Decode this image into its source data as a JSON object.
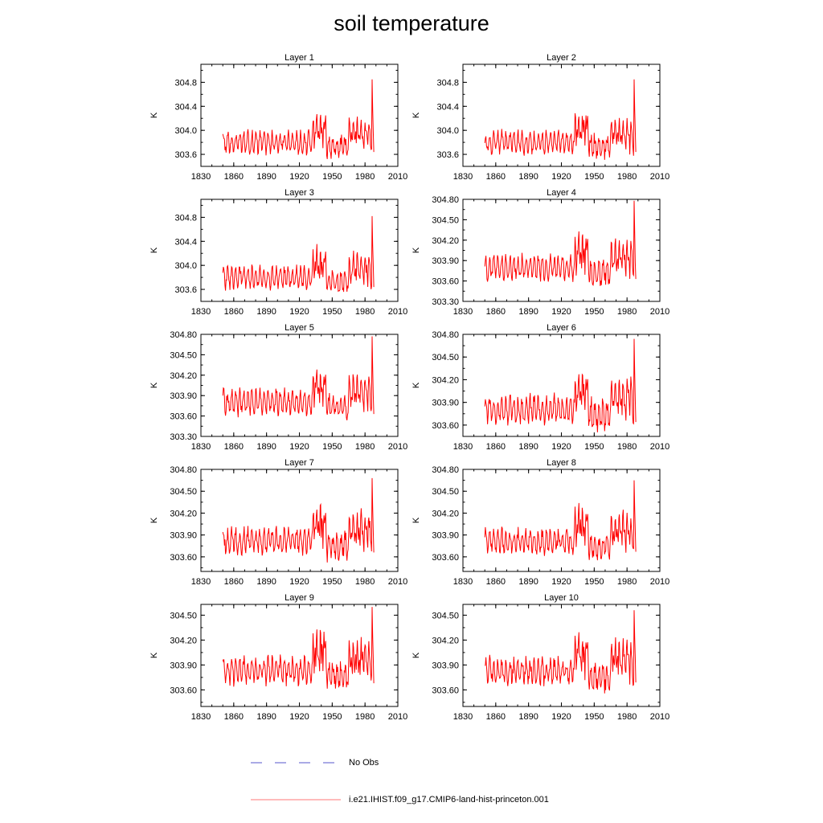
{
  "figure": {
    "title": "soil temperature"
  },
  "legend": {
    "items": [
      {
        "label": "No Obs",
        "color": "#5555cc",
        "style": "dashed"
      },
      {
        "label": "i.e21.IHIST.f09_g17.CMIP6-land-hist-princeton.001",
        "color": "#ff0000",
        "style": "solid"
      }
    ]
  },
  "chart_data": [
    {
      "type": "line",
      "title": "Layer 1",
      "ylabel": "K",
      "xlim": [
        1830,
        2010
      ],
      "ylim": [
        303.4,
        305.1
      ],
      "xticks": [
        1830,
        1860,
        1890,
        1920,
        1950,
        1980,
        2010
      ],
      "yticks": [
        "303.6",
        "304.0",
        "304.4",
        "304.8"
      ],
      "x_start": 1850,
      "x_end": 1988,
      "baseline": 303.65,
      "amplitude": 0.3,
      "trend": 0.0,
      "last_peak": 304.85,
      "last_value": 303.64,
      "min_value": 303.4
    },
    {
      "type": "line",
      "title": "Layer 2",
      "ylabel": "K",
      "xlim": [
        1830,
        2010
      ],
      "ylim": [
        303.4,
        305.1
      ],
      "xticks": [
        1830,
        1860,
        1890,
        1920,
        1950,
        1980,
        2010
      ],
      "yticks": [
        "303.6",
        "304.0",
        "304.4",
        "304.8"
      ],
      "x_start": 1850,
      "x_end": 1988,
      "baseline": 303.65,
      "amplitude": 0.3,
      "trend": 0.0,
      "last_peak": 304.85,
      "last_value": 303.64,
      "min_value": 303.42
    },
    {
      "type": "line",
      "title": "Layer 3",
      "ylabel": "K",
      "xlim": [
        1830,
        2010
      ],
      "ylim": [
        303.4,
        305.1
      ],
      "xticks": [
        1830,
        1860,
        1890,
        1920,
        1950,
        1980,
        2010
      ],
      "yticks": [
        "303.6",
        "304.0",
        "304.4",
        "304.8"
      ],
      "x_start": 1850,
      "x_end": 1988,
      "baseline": 303.65,
      "amplitude": 0.3,
      "trend": 0.0,
      "last_peak": 304.82,
      "last_value": 303.64,
      "min_value": 303.42
    },
    {
      "type": "line",
      "title": "Layer 4",
      "ylabel": "K",
      "xlim": [
        1830,
        2010
      ],
      "ylim": [
        303.3,
        304.8
      ],
      "xticks": [
        1830,
        1860,
        1890,
        1920,
        1950,
        1980,
        2010
      ],
      "yticks": [
        "303.30",
        "303.60",
        "303.90",
        "304.20",
        "304.50",
        "304.80"
      ],
      "x_start": 1850,
      "x_end": 1988,
      "baseline": 303.65,
      "amplitude": 0.3,
      "trend": 0.0,
      "last_peak": 304.8,
      "last_value": 303.63,
      "min_value": 303.38
    },
    {
      "type": "line",
      "title": "Layer 5",
      "ylabel": "K",
      "xlim": [
        1830,
        2010
      ],
      "ylim": [
        303.3,
        304.8
      ],
      "xticks": [
        1830,
        1860,
        1890,
        1920,
        1950,
        1980,
        2010
      ],
      "yticks": [
        "303.30",
        "303.60",
        "303.90",
        "304.20",
        "304.50",
        "304.80"
      ],
      "x_start": 1850,
      "x_end": 1988,
      "baseline": 303.65,
      "amplitude": 0.3,
      "trend": 0.0,
      "last_peak": 304.77,
      "last_value": 303.63,
      "min_value": 303.4
    },
    {
      "type": "line",
      "title": "Layer 6",
      "ylabel": "K",
      "xlim": [
        1830,
        2010
      ],
      "ylim": [
        303.45,
        304.8
      ],
      "xticks": [
        1830,
        1860,
        1890,
        1920,
        1950,
        1980,
        2010
      ],
      "yticks": [
        "303.60",
        "303.90",
        "304.20",
        "304.50",
        "304.80"
      ],
      "x_start": 1850,
      "x_end": 1988,
      "baseline": 303.66,
      "amplitude": 0.3,
      "trend": 0.0,
      "last_peak": 304.74,
      "last_value": 303.64,
      "min_value": 303.45
    },
    {
      "type": "line",
      "title": "Layer 7",
      "ylabel": "K",
      "xlim": [
        1830,
        2010
      ],
      "ylim": [
        303.4,
        304.8
      ],
      "xticks": [
        1830,
        1860,
        1890,
        1920,
        1950,
        1980,
        2010
      ],
      "yticks": [
        "303.60",
        "303.90",
        "304.20",
        "304.50",
        "304.80"
      ],
      "x_start": 1850,
      "x_end": 1988,
      "baseline": 303.68,
      "amplitude": 0.28,
      "trend": 0.0,
      "last_peak": 304.68,
      "last_value": 303.66,
      "min_value": 303.43
    },
    {
      "type": "line",
      "title": "Layer 8",
      "ylabel": "K",
      "xlim": [
        1830,
        2010
      ],
      "ylim": [
        303.4,
        304.8
      ],
      "xticks": [
        1830,
        1860,
        1890,
        1920,
        1950,
        1980,
        2010
      ],
      "yticks": [
        "303.60",
        "303.90",
        "304.20",
        "304.50",
        "304.80"
      ],
      "x_start": 1850,
      "x_end": 1988,
      "baseline": 303.68,
      "amplitude": 0.27,
      "trend": 0.0,
      "last_peak": 304.65,
      "last_value": 303.67,
      "min_value": 303.43
    },
    {
      "type": "line",
      "title": "Layer 9",
      "ylabel": "K",
      "xlim": [
        1830,
        2010
      ],
      "ylim": [
        303.4,
        304.63
      ],
      "xticks": [
        1830,
        1860,
        1890,
        1920,
        1950,
        1980,
        2010
      ],
      "yticks": [
        "303.60",
        "303.90",
        "304.20",
        "304.50"
      ],
      "x_start": 1850,
      "x_end": 1988,
      "baseline": 303.7,
      "amplitude": 0.26,
      "trend": 0.0,
      "last_peak": 304.6,
      "last_value": 303.68,
      "min_value": 303.43
    },
    {
      "type": "line",
      "title": "Layer 10",
      "ylabel": "K",
      "xlim": [
        1830,
        2010
      ],
      "ylim": [
        303.4,
        304.63
      ],
      "xticks": [
        1830,
        1860,
        1890,
        1920,
        1950,
        1980,
        2010
      ],
      "yticks": [
        "303.60",
        "303.90",
        "304.20",
        "304.50"
      ],
      "x_start": 1850,
      "x_end": 1988,
      "baseline": 303.7,
      "amplitude": 0.25,
      "trend": 0.0,
      "last_peak": 304.56,
      "last_value": 303.69,
      "min_value": 303.43
    }
  ]
}
